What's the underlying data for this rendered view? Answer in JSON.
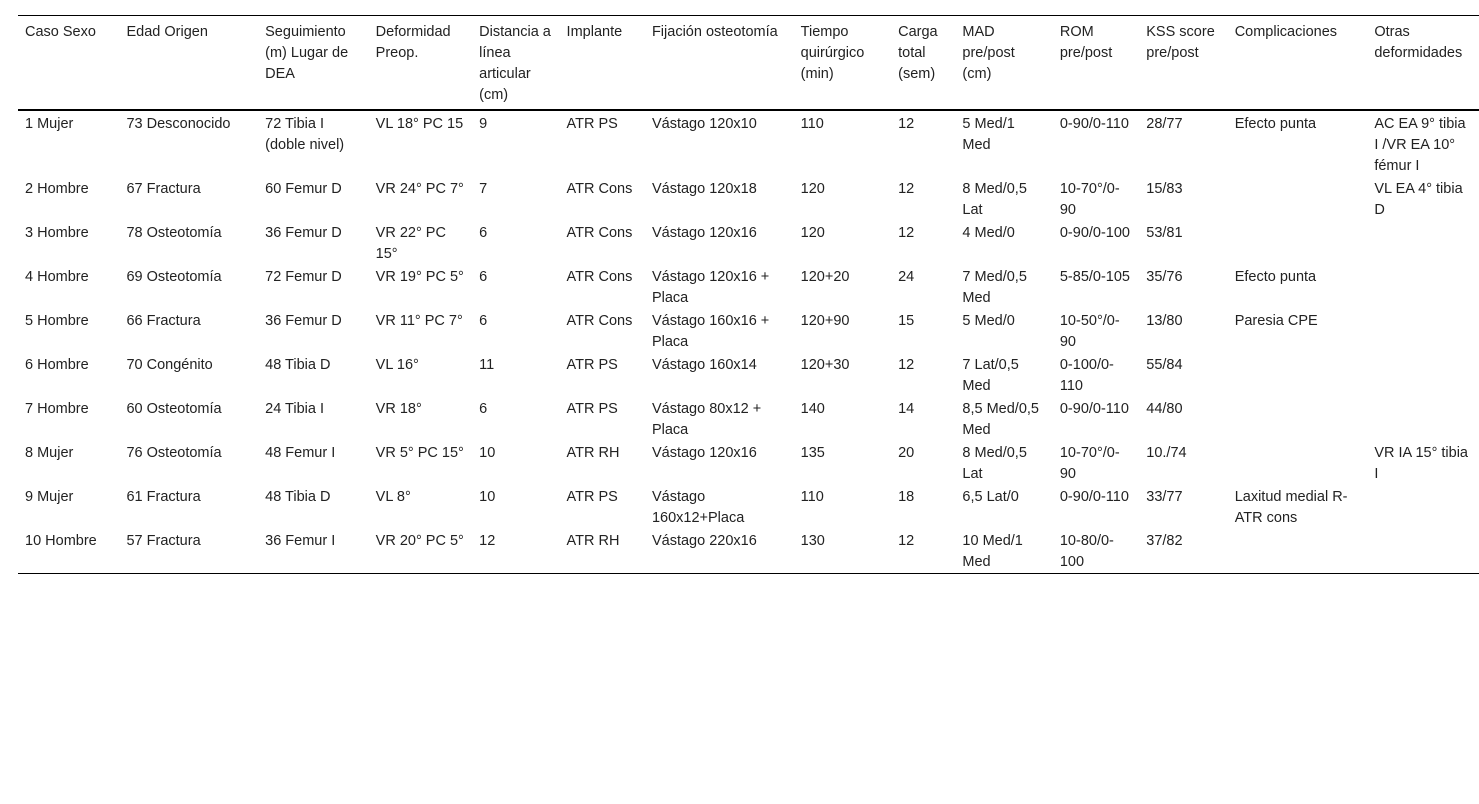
{
  "table": {
    "headers": [
      "Caso Sexo",
      "Edad Origen",
      "Seguimiento (m) Lugar de DEA",
      "Deformidad Preop.",
      "Distancia a línea articular (cm)",
      "Implante",
      "Fijación osteotomía",
      "Tiempo quirúrgico (min)",
      "Carga total (sem)",
      "MAD pre/post (cm)",
      "ROM pre/post",
      "KSS score pre/post",
      "Complicaciones",
      "Otras deformidades"
    ],
    "rows": [
      [
        "1 Mujer",
        "73 Desconocido",
        "72 Tibia I (doble nivel)",
        "VL 18° PC 15",
        "9",
        "ATR PS",
        "Vástago 120x10",
        "110",
        "12",
        "5 Med/1 Med",
        "0-90/0-110",
        "28/77",
        "Efecto punta",
        "AC EA 9° tibia I /VR EA 10° fémur I"
      ],
      [
        "2 Hombre",
        "67 Fractura",
        "60 Femur D",
        "VR 24° PC 7°",
        "7",
        "ATR Cons",
        "Vástago 120x18",
        "120",
        "12",
        "8 Med/0,5 Lat",
        "10-70°/0-90",
        "15/83",
        null,
        "VL EA 4° tibia D"
      ],
      [
        "3 Hombre",
        "78 Osteotomía",
        "36 Femur D",
        "VR 22° PC 15°",
        "6",
        "ATR Cons",
        "Vástago 120x16",
        "120",
        "12",
        "4 Med/0",
        "0-90/0-100",
        "53/81",
        null,
        null
      ],
      [
        "4 Hombre",
        "69 Osteotomía",
        "72 Femur D",
        "VR 19° PC 5°",
        "6",
        "ATR Cons",
        "Vástago 120x16 + Placa",
        "120+20",
        "24",
        "7 Med/0,5 Med",
        "5-85/0-105",
        "35/76",
        "Efecto punta",
        null
      ],
      [
        "5 Hombre",
        "66 Fractura",
        "36 Femur D",
        "VR 11° PC 7°",
        "6",
        "ATR Cons",
        "Vástago 160x16 + Placa",
        "120+90",
        "15",
        "5 Med/0",
        "10-50°/0-90",
        "13/80",
        "Paresia CPE",
        null
      ],
      [
        "6 Hombre",
        "70 Congénito",
        "48 Tibia D",
        "VL 16°",
        "11",
        "ATR PS",
        "Vástago 160x14",
        "120+30",
        "12",
        "7 Lat/0,5 Med",
        "0-100/0-110",
        "55/84",
        null,
        null
      ],
      [
        "7 Hombre",
        "60 Osteotomía",
        "24 Tibia I",
        "VR 18°",
        "6",
        "ATR PS",
        "Vástago 80x12 + Placa",
        "140",
        "14",
        "8,5 Med/0,5 Med",
        "0-90/0-110",
        "44/80",
        null,
        null
      ],
      [
        "8 Mujer",
        "76 Osteotomía",
        "48 Femur I",
        "VR 5° PC 15°",
        "10",
        "ATR RH",
        "Vástago 120x16",
        "135",
        "20",
        "8 Med/0,5 Lat",
        "10-70°/0-90",
        "10./74",
        null,
        "VR IA 15° tibia I"
      ],
      [
        "9 Mujer",
        "61 Fractura",
        "48 Tibia D",
        "VL 8°",
        "10",
        "ATR PS",
        "Vástago 160x12+Placa",
        "110",
        "18",
        "6,5 Lat/0",
        "0-90/0-110",
        "33/77",
        "Laxitud medial R-ATR cons",
        null
      ],
      [
        "10 Hombre",
        "57 Fractura",
        "36 Femur I",
        "VR 20° PC 5°",
        "12",
        "ATR RH",
        "Vástago 220x16",
        "130",
        "12",
        "10 Med/1 Med",
        "10-80/0-100",
        "37/82",
        null,
        null
      ]
    ]
  }
}
